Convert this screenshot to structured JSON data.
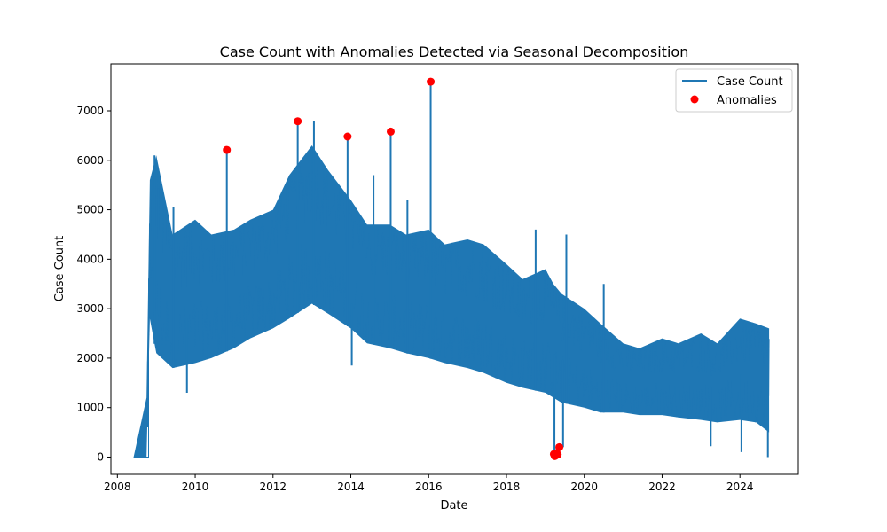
{
  "chart_data": {
    "type": "line",
    "title": "Case Count with Anomalies Detected via Seasonal Decomposition",
    "xlabel": "Date",
    "ylabel": "Case Count",
    "x_axis_kind": "date",
    "xlim": [
      "2007-11-01",
      "2025-07-01"
    ],
    "ylim": [
      -350,
      7950
    ],
    "x_ticks": [
      "2008",
      "2010",
      "2012",
      "2014",
      "2016",
      "2018",
      "2020",
      "2022",
      "2024"
    ],
    "y_ticks": [
      0,
      1000,
      2000,
      3000,
      4000,
      5000,
      6000,
      7000
    ],
    "grid": false,
    "legend": {
      "placement": "top-right",
      "entries": [
        {
          "label": "Case Count",
          "marker": "line",
          "color": "#1f77b4"
        },
        {
          "label": "Anomalies",
          "marker": "dot",
          "color": "#ff0000"
        }
      ]
    },
    "series": [
      {
        "name": "Case Count",
        "color": "#1f77b4",
        "envelope": [
          {
            "x": "2008-06-01",
            "low": 0,
            "high": 0
          },
          {
            "x": "2008-10-01",
            "low": 0,
            "high": 1200
          },
          {
            "x": "2008-11-01",
            "low": 2800,
            "high": 5600
          },
          {
            "x": "2009-01-01",
            "low": 2100,
            "high": 6100
          },
          {
            "x": "2009-06-01",
            "low": 1800,
            "high": 4500
          },
          {
            "x": "2010-01-01",
            "low": 1900,
            "high": 4800
          },
          {
            "x": "2010-06-01",
            "low": 2000,
            "high": 4500
          },
          {
            "x": "2011-01-01",
            "low": 2200,
            "high": 4600
          },
          {
            "x": "2011-06-01",
            "low": 2400,
            "high": 4800
          },
          {
            "x": "2012-01-01",
            "low": 2600,
            "high": 5000
          },
          {
            "x": "2012-06-01",
            "low": 2800,
            "high": 5700
          },
          {
            "x": "2013-01-01",
            "low": 3100,
            "high": 6300
          },
          {
            "x": "2013-06-01",
            "low": 2900,
            "high": 5800
          },
          {
            "x": "2014-01-01",
            "low": 2600,
            "high": 5200
          },
          {
            "x": "2014-06-01",
            "low": 2300,
            "high": 4700
          },
          {
            "x": "2015-01-01",
            "low": 2200,
            "high": 4700
          },
          {
            "x": "2015-06-01",
            "low": 2100,
            "high": 4500
          },
          {
            "x": "2016-01-01",
            "low": 2000,
            "high": 4600
          },
          {
            "x": "2016-06-01",
            "low": 1900,
            "high": 4300
          },
          {
            "x": "2017-01-01",
            "low": 1800,
            "high": 4400
          },
          {
            "x": "2017-06-01",
            "low": 1700,
            "high": 4300
          },
          {
            "x": "2018-01-01",
            "low": 1500,
            "high": 3900
          },
          {
            "x": "2018-06-01",
            "low": 1400,
            "high": 3600
          },
          {
            "x": "2019-01-01",
            "low": 1300,
            "high": 3800
          },
          {
            "x": "2019-03-15",
            "low": 1200,
            "high": 3500
          },
          {
            "x": "2019-06-01",
            "low": 1100,
            "high": 3300
          },
          {
            "x": "2020-01-01",
            "low": 1000,
            "high": 3000
          },
          {
            "x": "2020-06-01",
            "low": 900,
            "high": 2700
          },
          {
            "x": "2021-01-01",
            "low": 900,
            "high": 2300
          },
          {
            "x": "2021-06-01",
            "low": 850,
            "high": 2200
          },
          {
            "x": "2022-01-01",
            "low": 850,
            "high": 2400
          },
          {
            "x": "2022-06-01",
            "low": 800,
            "high": 2300
          },
          {
            "x": "2023-01-01",
            "low": 750,
            "high": 2500
          },
          {
            "x": "2023-06-01",
            "low": 700,
            "high": 2300
          },
          {
            "x": "2024-01-01",
            "low": 750,
            "high": 2800
          },
          {
            "x": "2024-06-01",
            "low": 700,
            "high": 2700
          },
          {
            "x": "2024-10-01",
            "low": 500,
            "high": 2600
          }
        ],
        "spikes": [
          {
            "x": "2008-12-15",
            "high": 6100
          },
          {
            "x": "2009-06-10",
            "high": 5050
          },
          {
            "x": "2010-10-24",
            "high": 6200
          },
          {
            "x": "2012-08-20",
            "high": 6800
          },
          {
            "x": "2013-01-20",
            "high": 6800
          },
          {
            "x": "2013-12-01",
            "high": 6500
          },
          {
            "x": "2014-08-01",
            "high": 5700
          },
          {
            "x": "2015-01-10",
            "high": 6580
          },
          {
            "x": "2015-06-15",
            "high": 5200
          },
          {
            "x": "2016-01-20",
            "high": 7600
          },
          {
            "x": "2018-10-01",
            "high": 4600
          },
          {
            "x": "2019-07-15",
            "high": 4500
          },
          {
            "x": "2020-07-01",
            "high": 3500
          }
        ],
        "dips": [
          {
            "x": "2008-10-15",
            "low": 600
          },
          {
            "x": "2009-10-15",
            "low": 1300
          },
          {
            "x": "2014-01-10",
            "low": 1850
          },
          {
            "x": "2019-03-25",
            "low": 20
          },
          {
            "x": "2019-06-15",
            "low": 200
          },
          {
            "x": "2023-04-01",
            "low": 220
          },
          {
            "x": "2024-01-15",
            "low": 100
          },
          {
            "x": "2024-09-20",
            "low": 0
          }
        ]
      },
      {
        "name": "Anomalies",
        "color": "#ff0000",
        "type": "scatter",
        "points": [
          {
            "x": "2010-10-24",
            "y": 6210
          },
          {
            "x": "2012-08-20",
            "y": 6790
          },
          {
            "x": "2013-12-01",
            "y": 6480
          },
          {
            "x": "2015-01-10",
            "y": 6580
          },
          {
            "x": "2016-01-20",
            "y": 7590
          },
          {
            "x": "2019-03-20",
            "y": 60
          },
          {
            "x": "2019-03-28",
            "y": 20
          },
          {
            "x": "2019-04-05",
            "y": 30
          },
          {
            "x": "2019-04-15",
            "y": 80
          },
          {
            "x": "2019-04-25",
            "y": 50
          },
          {
            "x": "2019-05-10",
            "y": 200
          }
        ]
      }
    ]
  }
}
